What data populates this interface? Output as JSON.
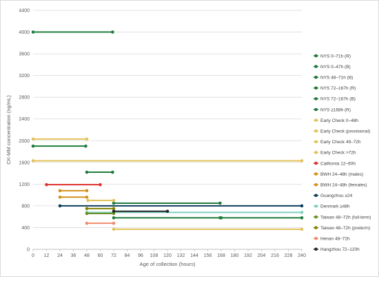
{
  "chart_data": {
    "type": "range-line",
    "title": "",
    "xlabel": "Age of collection (hours)",
    "ylabel": "CK-MM concentration (ng/mL)",
    "xlim": [
      0,
      240
    ],
    "ylim": [
      0,
      4400
    ],
    "x_ticks": [
      0,
      12,
      24,
      36,
      48,
      60,
      72,
      84,
      96,
      108,
      120,
      132,
      144,
      156,
      168,
      180,
      192,
      204,
      216,
      228,
      240
    ],
    "y_ticks": [
      0,
      400,
      800,
      1200,
      1600,
      2000,
      2400,
      2800,
      3200,
      3600,
      4000,
      4400
    ],
    "grid": "horizontal",
    "legend_position": "right",
    "series": [
      {
        "name": "NYS 0–71h (R)",
        "color": "#1e7b3c",
        "x": [
          0,
          71
        ],
        "y": [
          4000,
          4000
        ]
      },
      {
        "name": "NYS 0–47h (B)",
        "color": "#1e7b3c",
        "x": [
          0,
          47
        ],
        "y": [
          1900,
          1900
        ]
      },
      {
        "name": "NYS 48–71h (B)",
        "color": "#1e7b3c",
        "x": [
          48,
          71
        ],
        "y": [
          1420,
          1420
        ]
      },
      {
        "name": "NYS 72–167h (R)",
        "color": "#1e7b3c",
        "x": [
          72,
          167
        ],
        "y": [
          850,
          850
        ]
      },
      {
        "name": "NYS 72–167h (B)",
        "color": "#1e7b3c",
        "x": [
          72,
          167
        ],
        "y": [
          580,
          580
        ]
      },
      {
        "name": "NYS ≥168h (R)",
        "color": "#1e7b3c",
        "x": [
          168,
          240
        ],
        "y": [
          580,
          580
        ]
      },
      {
        "name": "Early Check 0–48h",
        "color": "#e2c35a",
        "x": [
          0,
          48
        ],
        "y": [
          2030,
          2030
        ]
      },
      {
        "name": "Early Check (provisional)",
        "color": "#e2c35a",
        "x": [
          0,
          240
        ],
        "y": [
          1630,
          1630
        ]
      },
      {
        "name": "Early Check 49–72h",
        "color": "#e2c35a",
        "x": [
          49,
          72
        ],
        "y": [
          900,
          900
        ]
      },
      {
        "name": "Early Check >72h",
        "color": "#e2c35a",
        "x": [
          72,
          240
        ],
        "y": [
          370,
          370
        ]
      },
      {
        "name": "California 12–60h",
        "color": "#e03131",
        "x": [
          12,
          60
        ],
        "y": [
          1190,
          1190
        ]
      },
      {
        "name": "BWH 24–48h (males)",
        "color": "#d4901c",
        "x": [
          24,
          48
        ],
        "y": [
          1080,
          1080
        ]
      },
      {
        "name": "BWH 24–48h (females)",
        "color": "#d4901c",
        "x": [
          24,
          48
        ],
        "y": [
          960,
          960
        ]
      },
      {
        "name": "Guangzhou ≥24",
        "color": "#0d3d5c",
        "x": [
          24,
          240
        ],
        "y": [
          800,
          800
        ]
      },
      {
        "name": "Denmark ≥48h",
        "color": "#7fcfc0",
        "x": [
          48,
          240
        ],
        "y": [
          680,
          680
        ]
      },
      {
        "name": "Taiwan 48–72h (full-term)",
        "color": "#6b8e23",
        "x": [
          48,
          72
        ],
        "y": [
          660,
          660
        ]
      },
      {
        "name": "Taiwan 48–72h (preterm)",
        "color": "#808000",
        "x": [
          48,
          72
        ],
        "y": [
          750,
          750
        ]
      },
      {
        "name": "Henan 48–72h",
        "color": "#f08a6a",
        "x": [
          48,
          72
        ],
        "y": [
          480,
          480
        ]
      },
      {
        "name": "Hangzhou 72–120h",
        "color": "#262626",
        "x": [
          72,
          120
        ],
        "y": [
          700,
          700
        ]
      }
    ]
  }
}
